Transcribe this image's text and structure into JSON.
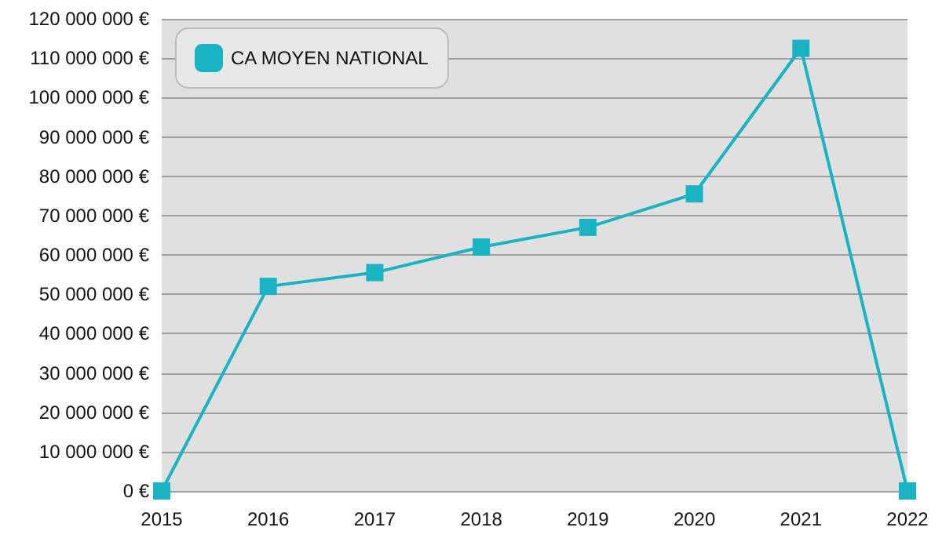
{
  "chart_data": {
    "type": "line",
    "categories": [
      "2015",
      "2016",
      "2017",
      "2018",
      "2019",
      "2020",
      "2021",
      "2022"
    ],
    "series": [
      {
        "name": "CA MOYEN NATIONAL",
        "color": "#1ab3c4",
        "values": [
          0,
          52000000,
          55500000,
          62000000,
          67000000,
          75500000,
          112500000,
          0
        ]
      }
    ],
    "ylim": [
      0,
      120000000
    ],
    "yticks": [
      {
        "value": 0,
        "label": "0 €"
      },
      {
        "value": 10000000,
        "label": "10 000 000 €"
      },
      {
        "value": 20000000,
        "label": "20 000 000 €"
      },
      {
        "value": 30000000,
        "label": "30 000 000 €"
      },
      {
        "value": 40000000,
        "label": "40 000 000 €"
      },
      {
        "value": 50000000,
        "label": "50 000 000 €"
      },
      {
        "value": 60000000,
        "label": "60 000 000 €"
      },
      {
        "value": 70000000,
        "label": "70 000 000 €"
      },
      {
        "value": 80000000,
        "label": "80 000 000 €"
      },
      {
        "value": 90000000,
        "label": "90 000 000 €"
      },
      {
        "value": 100000000,
        "label": "100 000 000 €"
      },
      {
        "value": 110000000,
        "label": "110 000 000 €"
      },
      {
        "value": 120000000,
        "label": "120 000 000 €"
      }
    ],
    "grid": "y",
    "legend": "top left",
    "marker": "square",
    "line_style": "solid"
  }
}
